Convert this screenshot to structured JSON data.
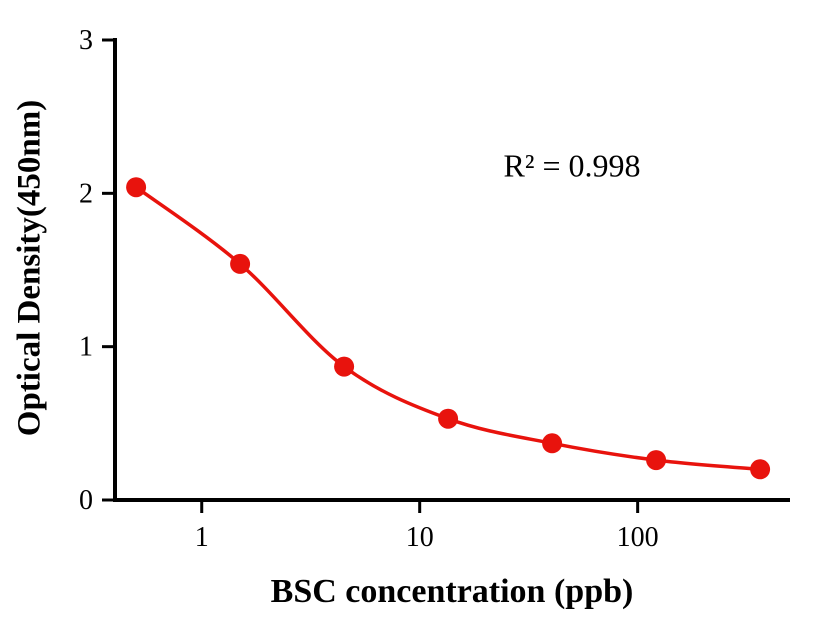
{
  "chart_data": {
    "type": "scatter",
    "title": "",
    "xlabel": "BSC concentration (ppb)",
    "ylabel": "Optical Density(450nm)",
    "annotation": "R² = 0.998",
    "x_scale": "log",
    "x": [
      0.5,
      1.5,
      4.5,
      13.5,
      40.5,
      121.5,
      364.5
    ],
    "y": [
      2.04,
      1.54,
      0.87,
      0.53,
      0.37,
      0.26,
      0.2
    ],
    "xlim": [
      0.4,
      500
    ],
    "ylim": [
      0,
      3
    ],
    "x_ticks": [
      {
        "value": 1,
        "label": "1"
      },
      {
        "value": 10,
        "label": "10"
      },
      {
        "value": 100,
        "label": "100"
      }
    ],
    "y_ticks": [
      {
        "value": 0,
        "label": "0"
      },
      {
        "value": 1,
        "label": "1"
      },
      {
        "value": 2,
        "label": "2"
      },
      {
        "value": 3,
        "label": "3"
      }
    ],
    "grid": false,
    "legend": "none",
    "line_color": "#e8130d",
    "point_color": "#e8130d",
    "axis_color": "#000000"
  }
}
